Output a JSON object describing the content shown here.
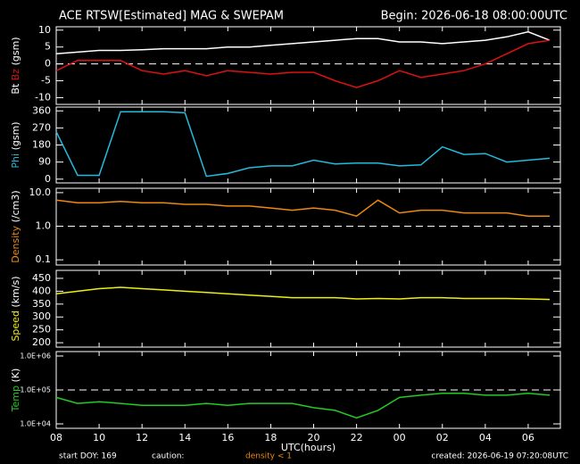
{
  "header": {
    "title": "ACE RTSW[Estimated] MAG & SWEPAM",
    "begin": "Begin: 2026-06-18 08:00:00UTC"
  },
  "footer": {
    "start": "start DOY: 169",
    "caution": "caution:",
    "density_note": "density < 1",
    "created": "created: 2026-06-19 07:20:08UTC"
  },
  "chart_data": [
    {
      "type": "line",
      "ylabel": "(gsm)",
      "xlim": [
        0,
        23.5
      ],
      "x": [
        0,
        1,
        2,
        3,
        4,
        5,
        6,
        7,
        8,
        9,
        10,
        11,
        12,
        13,
        14,
        15,
        16,
        17,
        18,
        19,
        20,
        21,
        22,
        23
      ],
      "series": [
        {
          "name": "Bt",
          "color": "#ffffff",
          "values": [
            3,
            3.5,
            4,
            4,
            4.2,
            4.5,
            4.5,
            4.5,
            5,
            5,
            5.5,
            6,
            6.5,
            7,
            7.5,
            7.5,
            6.5,
            6.5,
            6,
            6.5,
            7,
            8,
            9.5,
            7
          ]
        },
        {
          "name": "Bz",
          "color": "#dd1111",
          "values": [
            -2,
            1,
            1,
            1,
            -2,
            -3,
            -2,
            -3.5,
            -2,
            -2.5,
            -3,
            -2.5,
            -2.5,
            -5,
            -7,
            -5,
            -2,
            -4,
            -3,
            -2,
            0,
            3,
            6,
            7
          ]
        }
      ],
      "ylim": [
        -12,
        11
      ],
      "yticks": [
        10,
        5,
        0,
        -5,
        -10
      ],
      "ref_line": 0,
      "log_scale": false
    },
    {
      "type": "line",
      "ylabel": "(gsm)",
      "xlim": [
        0,
        23.5
      ],
      "x": [
        0,
        1,
        2,
        3,
        4,
        5,
        6,
        7,
        8,
        9,
        10,
        11,
        12,
        13,
        14,
        15,
        16,
        17,
        18,
        19,
        20,
        21,
        22,
        23
      ],
      "series": [
        {
          "name": "Phi",
          "color": "#22bbdd",
          "values": [
            250,
            20,
            20,
            355,
            355,
            355,
            350,
            15,
            30,
            60,
            70,
            70,
            100,
            80,
            85,
            85,
            70,
            75,
            170,
            130,
            135,
            90,
            100,
            110
          ]
        }
      ],
      "ylim": [
        -20,
        380
      ],
      "yticks": [
        360,
        270,
        180,
        90,
        0
      ],
      "log_scale": false
    },
    {
      "type": "line",
      "ylabel": "(/cm3)",
      "xlim": [
        0,
        23.5
      ],
      "x": [
        0,
        1,
        2,
        3,
        4,
        5,
        6,
        7,
        8,
        9,
        10,
        11,
        12,
        13,
        14,
        15,
        16,
        17,
        18,
        19,
        20,
        21,
        22,
        23
      ],
      "series": [
        {
          "name": "Density",
          "color": "#ee8811",
          "values": [
            6,
            5,
            5,
            5.5,
            5,
            5,
            4.5,
            4.5,
            4,
            4,
            3.5,
            3,
            3.5,
            3,
            2,
            6,
            2.5,
            3,
            3,
            2.5,
            2.5,
            2.5,
            2,
            2
          ]
        }
      ],
      "ylim": [
        0.07,
        13.5
      ],
      "yticks": [
        {
          "value": 10,
          "label": "10.0"
        },
        {
          "value": 1,
          "label": "1.0"
        },
        0.1
      ],
      "ref_line": 1,
      "log_scale": true
    },
    {
      "type": "line",
      "ylabel": "(km/s)",
      "xlim": [
        0,
        23.5
      ],
      "x": [
        0,
        1,
        2,
        3,
        4,
        5,
        6,
        7,
        8,
        9,
        10,
        11,
        12,
        13,
        14,
        15,
        16,
        17,
        18,
        19,
        20,
        21,
        22,
        23
      ],
      "series": [
        {
          "name": "Speed",
          "color": "#eeee11",
          "values": [
            390,
            400,
            410,
            415,
            410,
            405,
            400,
            395,
            390,
            385,
            380,
            375,
            375,
            375,
            370,
            372,
            370,
            375,
            375,
            372,
            372,
            372,
            370,
            368
          ]
        }
      ],
      "ylim": [
        183,
        481
      ],
      "yticks": [
        450,
        400,
        350,
        300,
        250,
        200
      ],
      "log_scale": false
    },
    {
      "type": "line",
      "ylabel": "(K)",
      "xlabel": "UTC(hours)",
      "xlim": [
        0,
        23.5
      ],
      "x": [
        0,
        1,
        2,
        3,
        4,
        5,
        6,
        7,
        8,
        9,
        10,
        11,
        12,
        13,
        14,
        15,
        16,
        17,
        18,
        19,
        20,
        21,
        22,
        23
      ],
      "xticks": [
        {
          "value": 0,
          "label": "08"
        },
        {
          "value": 2,
          "label": "10"
        },
        {
          "value": 4,
          "label": "12"
        },
        {
          "value": 6,
          "label": "14"
        },
        {
          "value": 8,
          "label": "16"
        },
        {
          "value": 10,
          "label": "18"
        },
        {
          "value": 12,
          "label": "20"
        },
        {
          "value": 14,
          "label": "22"
        },
        {
          "value": 16,
          "label": "00"
        },
        {
          "value": 18,
          "label": "02"
        },
        {
          "value": 20,
          "label": "04"
        },
        {
          "value": 22,
          "label": "06"
        }
      ],
      "series": [
        {
          "name": "Temp",
          "color": "#22cc22",
          "values": [
            60000,
            40000,
            45000,
            40000,
            35000,
            35000,
            35000,
            40000,
            35000,
            40000,
            40000,
            40000,
            30000,
            25000,
            15000,
            25000,
            60000,
            70000,
            80000,
            80000,
            70000,
            70000,
            80000,
            70000
          ]
        }
      ],
      "ylim": [
        7400,
        1350000
      ],
      "yticks": [
        {
          "value": 1000000,
          "label": "1.0E+06"
        },
        {
          "value": 100000,
          "label": "1.0E+05"
        },
        {
          "value": 10000,
          "label": "1.0E+04"
        }
      ],
      "ref_line": 100000,
      "log_scale": true
    }
  ]
}
